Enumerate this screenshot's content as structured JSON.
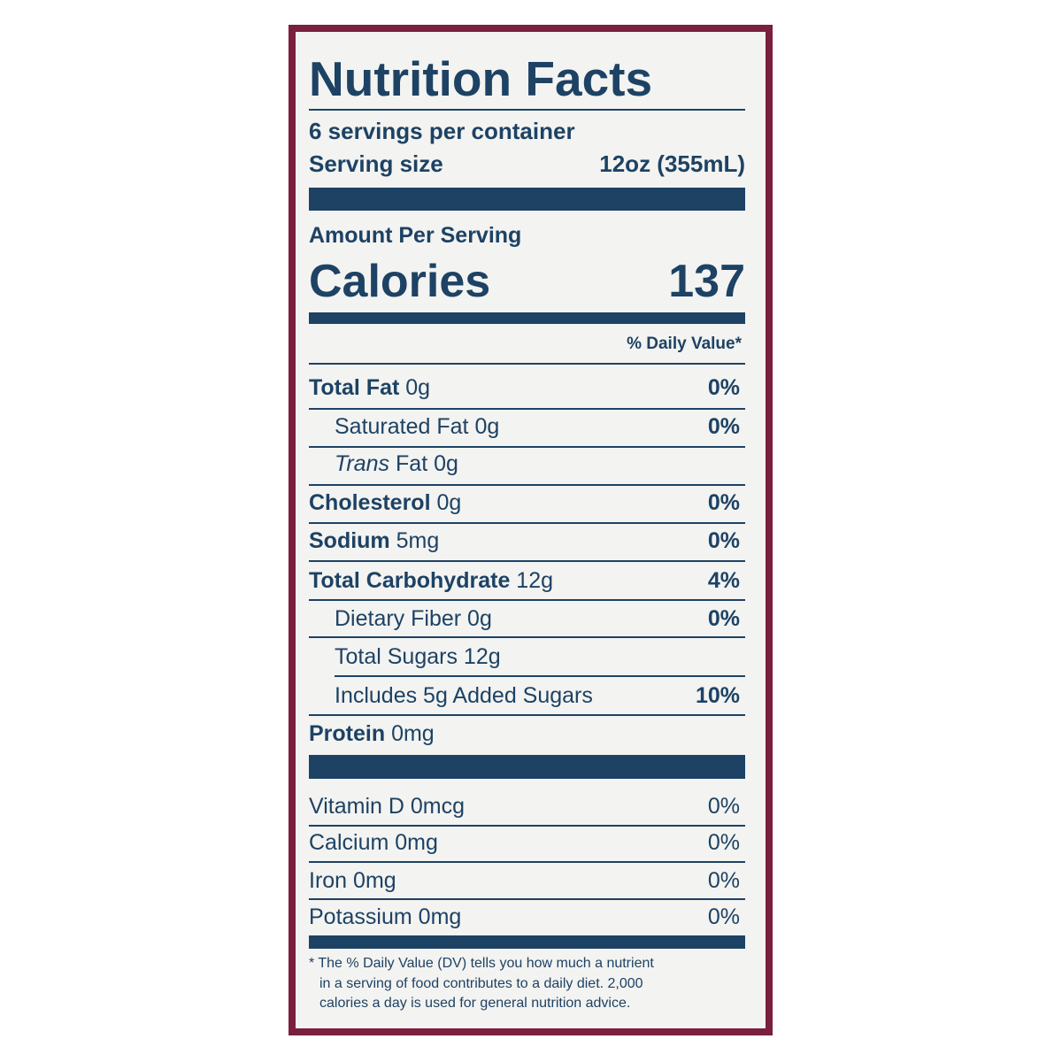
{
  "header": {
    "title": "Nutrition Facts",
    "servings": "6 servings per container",
    "serving_size_label": "Serving size",
    "serving_size_value": "12oz (355mL)"
  },
  "calories": {
    "amount_label": "Amount Per Serving",
    "label": "Calories",
    "value": 137
  },
  "dv_header": "% Daily Value*",
  "nutrients": [
    {
      "name": "Total Fat",
      "amount": "0g",
      "dv": "0%"
    },
    {
      "name": "Saturated Fat",
      "amount": "0g",
      "dv": "0%"
    },
    {
      "name_italic": "Trans",
      "name": "Fat",
      "amount": "0g"
    },
    {
      "name": "Cholesterol",
      "amount": "0g",
      "dv": "0%"
    },
    {
      "name": "Sodium",
      "amount": "5mg",
      "dv": "0%"
    },
    {
      "name": "Total Carbohydrate",
      "amount": "12g",
      "dv": "4%"
    },
    {
      "name": "Dietary Fiber",
      "amount": "0g",
      "dv": "0%"
    },
    {
      "name": "Total Sugars",
      "amount": "12g"
    },
    {
      "name": "Includes 5g Added Sugars",
      "dv": "10%"
    },
    {
      "name": "Protein",
      "amount": "0mg"
    }
  ],
  "vitamins": [
    {
      "name": "Vitamin D",
      "amount": "0mcg",
      "dv": "0%"
    },
    {
      "name": "Calcium",
      "amount": "0mg",
      "dv": "0%"
    },
    {
      "name": "Iron",
      "amount": "0mg",
      "dv": "0%"
    },
    {
      "name": "Potassium",
      "amount": "0mg",
      "dv": "0%"
    }
  ],
  "footnote": [
    "* The % Daily Value (DV) tells you how much a nutrient",
    "in a serving of food contributes to a daily diet. 2,000",
    "calories a day is used for general nutrition advice."
  ]
}
